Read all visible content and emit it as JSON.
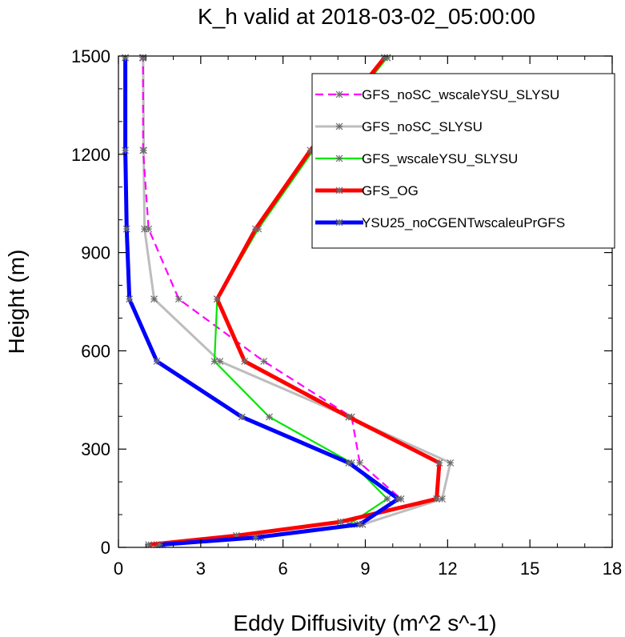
{
  "chart_data": {
    "type": "line",
    "title": "K_h valid at 2018-03-02_05:00:00",
    "xlabel": "Eddy Diffusivity (m^2 s^-1)",
    "ylabel": "Height (m)",
    "xlim": [
      0,
      18
    ],
    "ylim": [
      0,
      1500
    ],
    "xticks": [
      0,
      3,
      6,
      9,
      12,
      15,
      18
    ],
    "yticks": [
      0,
      300,
      600,
      900,
      1200,
      1500
    ],
    "grid": false,
    "legend_position": "top-right",
    "series": [
      {
        "name": "GFS_noSC_wscaleYSU_SLYSU",
        "color": "#ff00ff",
        "dash": true,
        "width": 2.2,
        "x": [
          1.4,
          5.1,
          8.7,
          10.3,
          8.8,
          8.5,
          5.3,
          2.2,
          1.1,
          0.9,
          0.9,
          0.9
        ],
        "y": [
          8,
          30,
          70,
          148,
          258,
          398,
          568,
          758,
          972,
          1212,
          1495,
          1495
        ]
      },
      {
        "name": "GFS_noSC_SLYSU",
        "color": "#bdbdbd",
        "dash": false,
        "width": 3,
        "x": [
          1.6,
          5.2,
          8.9,
          11.8,
          12.1,
          8.4,
          3.7,
          1.3,
          0.95,
          0.92,
          0.9,
          0.88
        ],
        "y": [
          8,
          30,
          70,
          148,
          258,
          398,
          568,
          758,
          972,
          1212,
          1495,
          1495
        ]
      },
      {
        "name": "GFS_wscaleYSU_SLYSU",
        "color": "#00e600",
        "dash": false,
        "width": 2.2,
        "x": [
          1.5,
          5.2,
          8.4,
          9.8,
          8.5,
          5.5,
          3.5,
          3.6,
          5.1,
          7.1,
          9.8,
          9.8
        ],
        "y": [
          8,
          30,
          70,
          148,
          258,
          398,
          568,
          758,
          972,
          1212,
          1495,
          1495
        ]
      },
      {
        "name": "GFS_OG",
        "color": "#ff0000",
        "dash": false,
        "width": 5,
        "x": [
          1.1,
          4.3,
          8.1,
          11.6,
          11.7,
          8.4,
          4.6,
          3.6,
          5.0,
          7.0,
          9.7,
          9.7
        ],
        "y": [
          8,
          36,
          78,
          148,
          258,
          398,
          568,
          758,
          972,
          1212,
          1495,
          1495
        ]
      },
      {
        "name": "YSU25_noCGENTwscaleuPrGFS",
        "color": "#0000ff",
        "dash": false,
        "width": 5,
        "x": [
          1.5,
          5.0,
          8.8,
          10.2,
          8.4,
          4.5,
          1.4,
          0.4,
          0.3,
          0.25,
          0.25,
          0.25
        ],
        "y": [
          8,
          30,
          70,
          148,
          258,
          398,
          568,
          758,
          972,
          1212,
          1495,
          1495
        ]
      }
    ]
  }
}
